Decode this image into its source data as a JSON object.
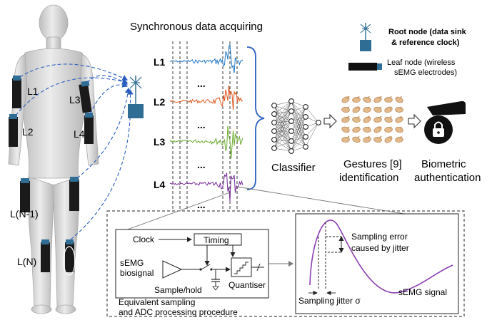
{
  "header": {
    "title": "Synchronous data acquiring"
  },
  "legend": {
    "root_node_line1": "Root node (data sink",
    "root_node_line2": "& reference clock)",
    "leaf_node_line1": "Leaf node (wireless",
    "leaf_node_line2": "sEMG electrodes)"
  },
  "body_labels": {
    "l1": "L1",
    "l2": "L2",
    "l3": "L3",
    "l4": "L4",
    "ln1": "L(N-1)",
    "ln": "L(N)"
  },
  "channels": [
    {
      "label": "L1",
      "color": "#1f77c4"
    },
    {
      "label": "L2",
      "color": "#e0561c"
    },
    {
      "label": "L3",
      "color": "#6aab2c"
    },
    {
      "label": "L4",
      "color": "#7a2f9b"
    }
  ],
  "ellipsis": "...",
  "pipeline": {
    "classifier": "Classifier",
    "gestures_line1": "Gestures [9]",
    "gestures_line2": "identification",
    "biometric_line1": "Biometric",
    "biometric_line2": "authentication"
  },
  "adc": {
    "clock": "Clock",
    "timing": "Timing",
    "semg_line1": "sEMG",
    "semg_line2": "biosignal",
    "quantiser": "Quantiser",
    "sample_hold": "Sample/hold",
    "caption_line1": "Equivalent sampling",
    "caption_line2": "and ADC processing procedure"
  },
  "jitter_plot": {
    "error_line1": "Sampling error",
    "error_line2": "caused by jitter",
    "jitter_label": "Sampling jitter σ",
    "signal_label": "sEMG signal"
  },
  "colors": {
    "node_blue": "#2f6d94",
    "wire_blue": "#2b5fbf",
    "electrode": "#1a1a1a",
    "body": "#d6d6d6",
    "signal_purple": "#8a3fb0"
  }
}
